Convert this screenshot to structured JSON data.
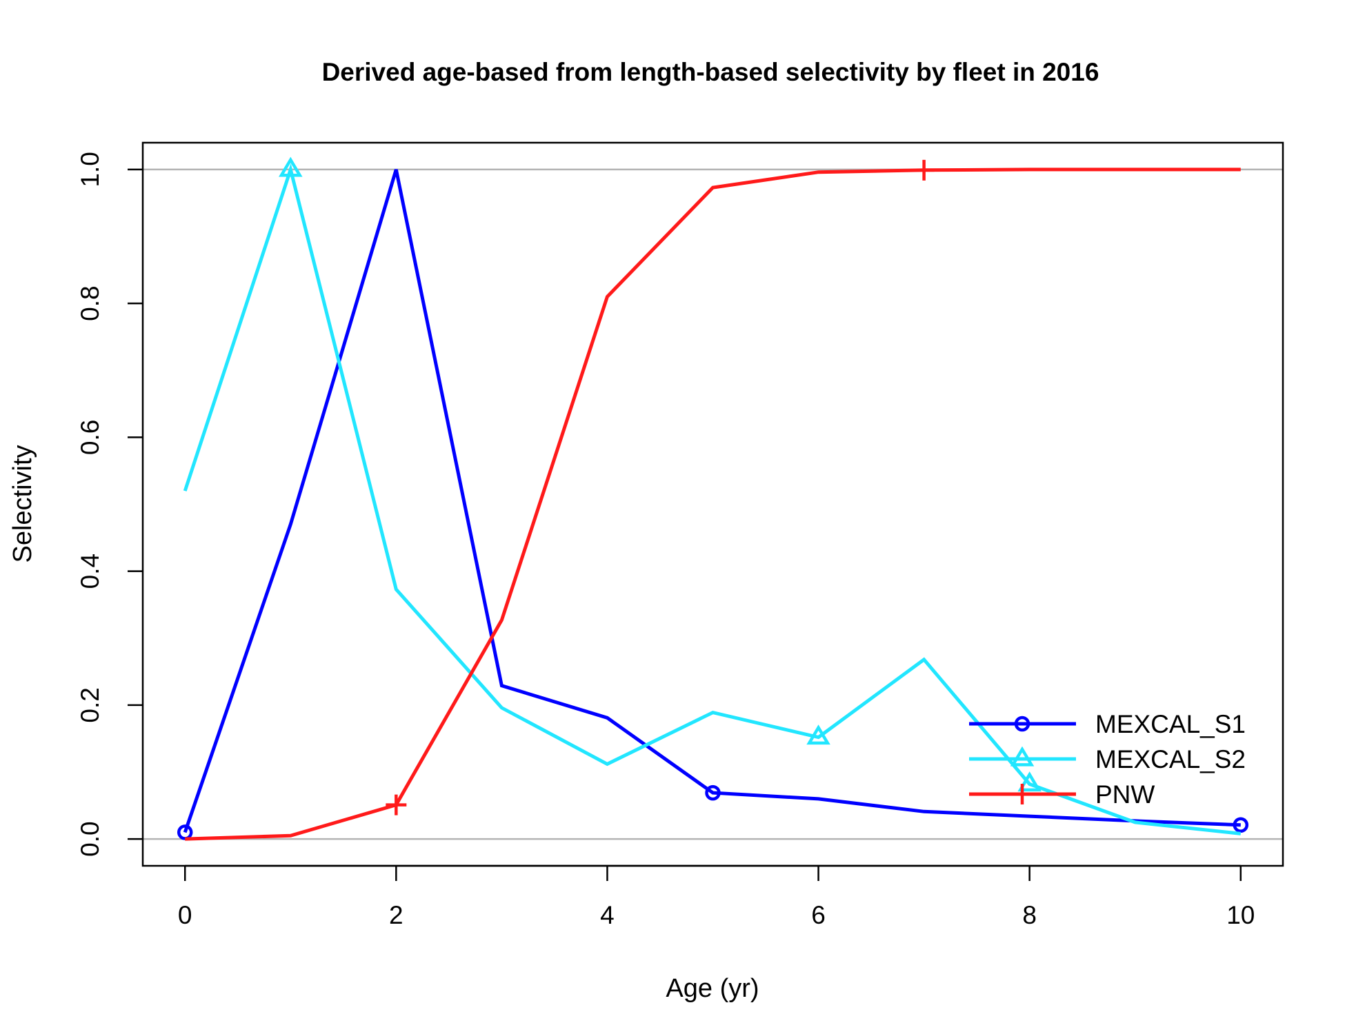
{
  "chart_data": {
    "type": "line",
    "title": "Derived age-based from length-based selectivity by fleet in 2016",
    "xlabel": "Age (yr)",
    "ylabel": "Selectivity",
    "xlim": [
      -0.4,
      10.4
    ],
    "ylim": [
      -0.04,
      1.04
    ],
    "xticks": [
      0,
      2,
      4,
      6,
      8,
      10
    ],
    "yticks": [
      0.0,
      0.2,
      0.4,
      0.6,
      0.8,
      1.0
    ],
    "xtick_labels": [
      "0",
      "2",
      "4",
      "6",
      "8",
      "10"
    ],
    "ytick_labels": [
      "0.0",
      "0.2",
      "0.4",
      "0.6",
      "0.8",
      "1.0"
    ],
    "reference_lines_y": [
      0,
      1
    ],
    "reference_line_color": "#b3b3b3",
    "legend_position": "bottom-right",
    "grid": false,
    "x": [
      0,
      1,
      2,
      3,
      4,
      5,
      6,
      7,
      8,
      9,
      10
    ],
    "series": [
      {
        "name": "MEXCAL_S1",
        "color": "#0000ff",
        "marker": "circle",
        "marker_x": [
          0,
          5,
          10
        ],
        "values": [
          0.01,
          0.47,
          1.0,
          0.229,
          0.181,
          0.069,
          0.06,
          0.041,
          0.034,
          0.027,
          0.021
        ]
      },
      {
        "name": "MEXCAL_S2",
        "color": "#22e6ff",
        "marker": "triangle",
        "marker_x": [
          1,
          6,
          8
        ],
        "values": [
          0.52,
          1.0,
          0.373,
          0.196,
          0.112,
          0.189,
          0.152,
          0.268,
          0.082,
          0.025,
          0.008
        ]
      },
      {
        "name": "PNW",
        "color": "#ff1a1a",
        "marker": "plus",
        "marker_x": [
          2,
          7
        ],
        "values": [
          0.0,
          0.005,
          0.051,
          0.327,
          0.81,
          0.973,
          0.996,
          0.999,
          1.0,
          1.0,
          1.0
        ]
      }
    ]
  }
}
